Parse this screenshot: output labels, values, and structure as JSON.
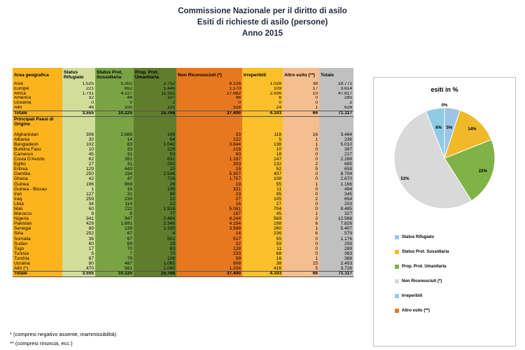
{
  "header": {
    "line1": "Commissione Nazionale per il diritto di asilo",
    "line2": "Esiti di richieste di asilo (persone)",
    "line3": "Anno 2015"
  },
  "table": {
    "columns": [
      "Area geografica",
      "Status Rifugiato",
      "Status Prot. Sussidiaria",
      "Prop. Prot. Umanitaria",
      "Non Riconosciuti (*)",
      "Irreperibili",
      "Altro esito (**)",
      "Totale"
    ],
    "areas": [
      [
        "Asia",
        "1.525",
        "5.302",
        "2.752",
        "8.126",
        "1.028",
        "38",
        "18.771"
      ],
      [
        "Europe",
        "221",
        "652",
        "1.445",
        "1.170",
        "109",
        "17",
        "3.614"
      ],
      [
        "Africa",
        "1.731",
        "4.127",
        "11.331",
        "27.682",
        "2.936",
        "10",
        "47.817"
      ],
      [
        "America",
        "32",
        "44",
        "107",
        "96",
        "6",
        "0",
        "285"
      ],
      [
        "Oceania",
        "0",
        "0",
        "2",
        "0",
        "0",
        "0",
        "2"
      ],
      [
        "Altri",
        "46",
        "100",
        "131",
        "326",
        "24",
        "1",
        "628"
      ]
    ],
    "subtotal": [
      "Totale",
      "3.555",
      "10.225",
      "15.768",
      "37.400",
      "4.103",
      "66",
      "71.117"
    ],
    "countries_heading": "Principali Paesi di Origine",
    "countries": [
      [
        "Afghanistan",
        "306",
        "2.885",
        "106",
        "33",
        "118",
        "16",
        "3.464"
      ],
      [
        "Albania",
        "30",
        "14",
        "64",
        "122",
        "5",
        "1",
        "236"
      ],
      [
        "Bangladesh",
        "102",
        "83",
        "1.042",
        "3.644",
        "138",
        "1",
        "5.010"
      ],
      [
        "Burkina Faso",
        "10",
        "33",
        "126",
        "218",
        "10",
        "0",
        "397"
      ],
      [
        "Camerun",
        "45",
        "31",
        "53",
        "80",
        "18",
        "0",
        "227"
      ],
      [
        "Costa D'Avorio",
        "62",
        "261",
        "631",
        "1.187",
        "147",
        "0",
        "2.288"
      ],
      [
        "Egitto",
        "27",
        "31",
        "200",
        "303",
        "132",
        "2",
        "695"
      ],
      [
        "Eritrea",
        "129",
        "443",
        "15",
        "15",
        "52",
        "5",
        "659"
      ],
      [
        "Gambia",
        "250",
        "194",
        "2.546",
        "5.307",
        "407",
        "0",
        "8.704"
      ],
      [
        "Ghana",
        "42",
        "47",
        "716",
        "1.757",
        "108",
        "0",
        "2.670"
      ],
      [
        "Guinea",
        "196",
        "869",
        "26",
        "19",
        "55",
        "1",
        "1.166"
      ],
      [
        "Guinea - Bissau",
        "1",
        "16",
        "135",
        "331",
        "11",
        "0",
        "494"
      ],
      [
        "Iran",
        "127",
        "31",
        "69",
        "23",
        "95",
        "0",
        "345"
      ],
      [
        "Iraq",
        "259",
        "239",
        "22",
        "27",
        "105",
        "2",
        "654"
      ],
      [
        "Libia",
        "34",
        "114",
        "12",
        "16",
        "27",
        "0",
        "203"
      ],
      [
        "Mali",
        "60",
        "722",
        "1.918",
        "5.081",
        "704",
        "0",
        "8.485"
      ],
      [
        "Marocco",
        "9",
        "8",
        "77",
        "187",
        "45",
        "1",
        "327"
      ],
      [
        "Nigeria",
        "341",
        "947",
        "2.464",
        "8.244",
        "569",
        "3",
        "12.568"
      ],
      [
        "Pakistan",
        "429",
        "1.691",
        "1.348",
        "4.154",
        "198",
        "6",
        "7.826"
      ],
      [
        "Senegal",
        "89",
        "139",
        "1.330",
        "3.588",
        "260",
        "1",
        "5.407"
      ],
      [
        "Siria",
        "252",
        "67",
        "4",
        "14",
        "236",
        "6",
        "579"
      ],
      [
        "Somalia",
        "36",
        "67",
        "501",
        "517",
        "55",
        "0",
        "1.176"
      ],
      [
        "Sudan",
        "60",
        "89",
        "19",
        "32",
        "59",
        "0",
        "259"
      ],
      [
        "Togo",
        "17",
        "70",
        "63",
        "128",
        "11",
        "0",
        "289"
      ],
      [
        "Tunisia",
        "5",
        "7",
        "70",
        "233",
        "68",
        "0",
        "383"
      ],
      [
        "Turchia",
        "87",
        "79",
        "106",
        "99",
        "16",
        "1",
        "388"
      ],
      [
        "Ucraina",
        "80",
        "487",
        "1.065",
        "808",
        "38",
        "15",
        "2.493"
      ],
      [
        "Altri (*)",
        "470",
        "561",
        "1.040",
        "1.234",
        "416",
        "5",
        "3.726"
      ]
    ],
    "total": [
      "Totale",
      "3.555",
      "10.225",
      "15.768",
      "37.400",
      "4.103",
      "66",
      "71.117"
    ]
  },
  "footnotes": {
    "f1": "* (compresi negativo assente, inammissibilità)",
    "f2": "** (compresi rinuncia, ecc.)"
  },
  "chart_data": {
    "type": "pie",
    "title": "esiti in %",
    "slices": [
      {
        "label": "Status Rifugiato",
        "value": 5,
        "pct_label": "5%",
        "color": "#9dc3e6"
      },
      {
        "label": "Status Prot. Sussidiaria",
        "value": 14,
        "pct_label": "14%",
        "color": "#f0b92a"
      },
      {
        "label": "Prop. Prot. Umanitaria",
        "value": 22,
        "pct_label": "22%",
        "color": "#7fb347"
      },
      {
        "label": "Non Riconosciuti (*)",
        "value": 53,
        "pct_label": "53%",
        "color": "#d9d9d9"
      },
      {
        "label": "Irreperibili",
        "value": 6,
        "pct_label": "6%",
        "color": "#8fcbe4"
      },
      {
        "label": "Altro esito (**)",
        "value": 0,
        "pct_label": "0%",
        "color": "#e8781f"
      }
    ],
    "legend_position": "bottom"
  }
}
